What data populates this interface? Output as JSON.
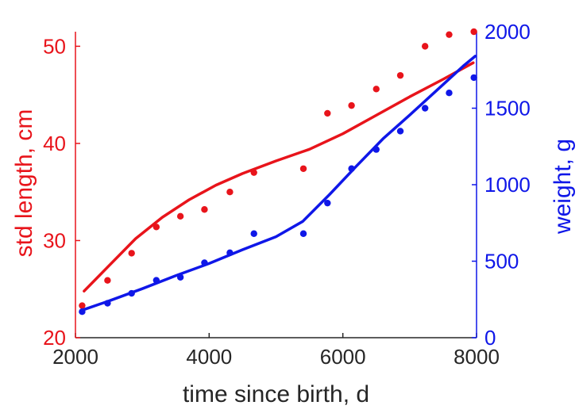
{
  "chart_data": {
    "type": "scatter",
    "title": "",
    "xlabel": "time since birth, d",
    "xlim": [
      2000,
      8000
    ],
    "xticks": [
      2000,
      4000,
      6000,
      8000
    ],
    "left_axis": {
      "ylabel": "std length, cm",
      "ylim": [
        20,
        51.5
      ],
      "yticks": [
        20,
        30,
        40,
        50
      ],
      "color": "#e8141b"
    },
    "right_axis": {
      "ylabel": "weight, g",
      "ylim": [
        0,
        2000
      ],
      "yticks": [
        0,
        500,
        1000,
        1500,
        2000
      ],
      "color": "#0f17e8"
    },
    "grid": false,
    "series": [
      {
        "axis": "left",
        "kind": "points",
        "color": "#e8141b",
        "x": [
          2100,
          2480,
          2840,
          3210,
          3570,
          3930,
          4310,
          4670,
          5410,
          5770,
          6130,
          6500,
          6860,
          7230,
          7590,
          7960
        ],
        "y": [
          23.3,
          25.9,
          28.7,
          31.4,
          32.5,
          33.2,
          35.0,
          37.0,
          37.4,
          43.1,
          43.9,
          45.6,
          47.0,
          50.0,
          51.2,
          51.5
        ]
      },
      {
        "axis": "left",
        "kind": "line",
        "color": "#e8141b",
        "x": [
          2130,
          2500,
          2900,
          3300,
          3700,
          4100,
          4500,
          5000,
          5500,
          6000,
          6500,
          7000,
          7500,
          7950
        ],
        "y": [
          24.8,
          27.4,
          30.2,
          32.4,
          34.2,
          35.7,
          36.9,
          38.2,
          39.4,
          41.0,
          42.9,
          44.8,
          46.6,
          48.3
        ]
      },
      {
        "axis": "right",
        "kind": "points",
        "color": "#0f17e8",
        "x": [
          2100,
          2480,
          2840,
          3210,
          3570,
          3930,
          4310,
          4670,
          5410,
          5770,
          6130,
          6500,
          6860,
          7230,
          7590,
          7960
        ],
        "y": [
          170,
          225,
          290,
          375,
          395,
          490,
          555,
          680,
          680,
          880,
          1105,
          1230,
          1350,
          1500,
          1600,
          1700
        ]
      },
      {
        "axis": "right",
        "kind": "line",
        "color": "#0f17e8",
        "x": [
          2100,
          2500,
          3000,
          3500,
          4000,
          4500,
          5000,
          5400,
          5800,
          6200,
          6600,
          7000,
          7400,
          7800,
          7980
        ],
        "y": [
          180,
          240,
          320,
          405,
          485,
          575,
          660,
          760,
          935,
          1120,
          1300,
          1455,
          1615,
          1775,
          1840
        ]
      }
    ]
  }
}
